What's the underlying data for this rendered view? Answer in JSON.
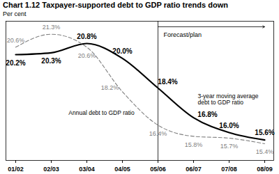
{
  "chart_data": {
    "type": "line",
    "title": "Chart 1.12 Taxpayer-supported debt to GDP ratio trends down",
    "y_label": "Per cent",
    "categories": [
      "01/02",
      "02/03",
      "03/04",
      "04/05",
      "05/06",
      "06/07",
      "07/08",
      "08/09"
    ],
    "series": [
      {
        "name": "3-year moving average debt to GDP ratio",
        "color": "#000000",
        "line_style": "solid",
        "values": [
          20.2,
          20.3,
          20.8,
          20.0,
          18.4,
          16.8,
          16.0,
          15.6
        ],
        "value_labels": [
          "20.2%",
          "20.3%",
          "20.8%",
          "20.0%",
          "18.4%",
          "16.8%",
          "16.0%",
          "15.6%"
        ]
      },
      {
        "name": "Annual debt to GDP ratio",
        "color": "#808080",
        "line_style": "dashed",
        "values": [
          20.6,
          21.3,
          20.6,
          18.2,
          16.4,
          15.8,
          15.7,
          15.4
        ],
        "value_labels": [
          "20.6%",
          "21.3%",
          "20.6%",
          "18.2%",
          "16.4%",
          "15.8%",
          "15.7%",
          "15.4%"
        ]
      }
    ],
    "annotations": [
      "Forecast/plan"
    ],
    "forecast_start": "05/06",
    "ylim": [
      14.5,
      22
    ],
    "yticks": [],
    "tick_labels": "x",
    "data_labels": true,
    "grid": false
  }
}
